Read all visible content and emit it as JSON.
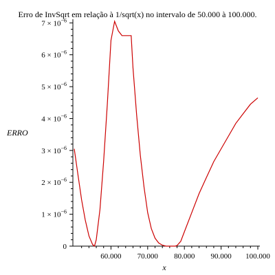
{
  "chart_data": {
    "type": "line",
    "title": "Erro de InvSqrt em relação à 1/sqrt(x) no intervalo de 50.000 à 100.000.",
    "xlabel": "x",
    "ylabel": "ERRO",
    "xlim": [
      50000,
      100000
    ],
    "ylim": [
      0,
      7.2e-06
    ],
    "x_ticks": [
      {
        "value": 60000,
        "label": "60.000"
      },
      {
        "value": 70000,
        "label": "70.000"
      },
      {
        "value": 80000,
        "label": "80.000"
      },
      {
        "value": 90000,
        "label": "90.000"
      },
      {
        "value": 100000,
        "label": "100.000"
      }
    ],
    "y_ticks": [
      {
        "value": 0,
        "mantissa": "0",
        "exponent": ""
      },
      {
        "value": 1e-06,
        "mantissa": "1 × 10",
        "exponent": "−6"
      },
      {
        "value": 2e-06,
        "mantissa": "2 × 10",
        "exponent": "−6"
      },
      {
        "value": 3e-06,
        "mantissa": "3 × 10",
        "exponent": "−6"
      },
      {
        "value": 4e-06,
        "mantissa": "4 × 10",
        "exponent": "−6"
      },
      {
        "value": 5e-06,
        "mantissa": "5 × 10",
        "exponent": "−6"
      },
      {
        "value": 6e-06,
        "mantissa": "6 × 10",
        "exponent": "−6"
      },
      {
        "value": 7e-06,
        "mantissa": "7 × 10",
        "exponent": "−6"
      }
    ],
    "grid": false,
    "colors": {
      "series": "#cc0000",
      "axis": "#000000"
    },
    "series": [
      {
        "x": [
          50000,
          51000,
          52000,
          53000,
          54000,
          55000,
          55500,
          56000,
          57000,
          58000,
          59000,
          60000,
          61000,
          62000,
          63000,
          64000,
          65000,
          65500,
          66000,
          67000,
          68000,
          69000,
          70000,
          71000,
          72000,
          73000,
          74000,
          75000,
          76000,
          77000,
          77500,
          78000,
          79000,
          80000,
          82000,
          84000,
          86000,
          88000,
          90000,
          92000,
          94000,
          96000,
          98000,
          100000
        ],
        "y": [
          3.05e-06,
          2.25e-06,
          1.45e-06,
          8.2e-07,
          3.2e-07,
          5e-08,
          0.0,
          2e-07,
          1.15e-06,
          2.65e-06,
          4.45e-06,
          6.45e-06,
          7.05e-06,
          6.75e-06,
          6.6e-06,
          6.6e-06,
          6.6e-06,
          6.6e-06,
          5.6e-06,
          4.1e-06,
          2.85e-06,
          1.85e-06,
          1.05e-06,
          5.5e-07,
          2.5e-07,
          1e-07,
          3e-08,
          0.0,
          0.0,
          0.0,
          0.0,
          2e-08,
          1.5e-07,
          4.5e-07,
          1.05e-06,
          1.65e-06,
          2.15e-06,
          2.65e-06,
          3.05e-06,
          3.45e-06,
          3.85e-06,
          4.15e-06,
          4.45e-06,
          4.65e-06
        ]
      }
    ]
  }
}
